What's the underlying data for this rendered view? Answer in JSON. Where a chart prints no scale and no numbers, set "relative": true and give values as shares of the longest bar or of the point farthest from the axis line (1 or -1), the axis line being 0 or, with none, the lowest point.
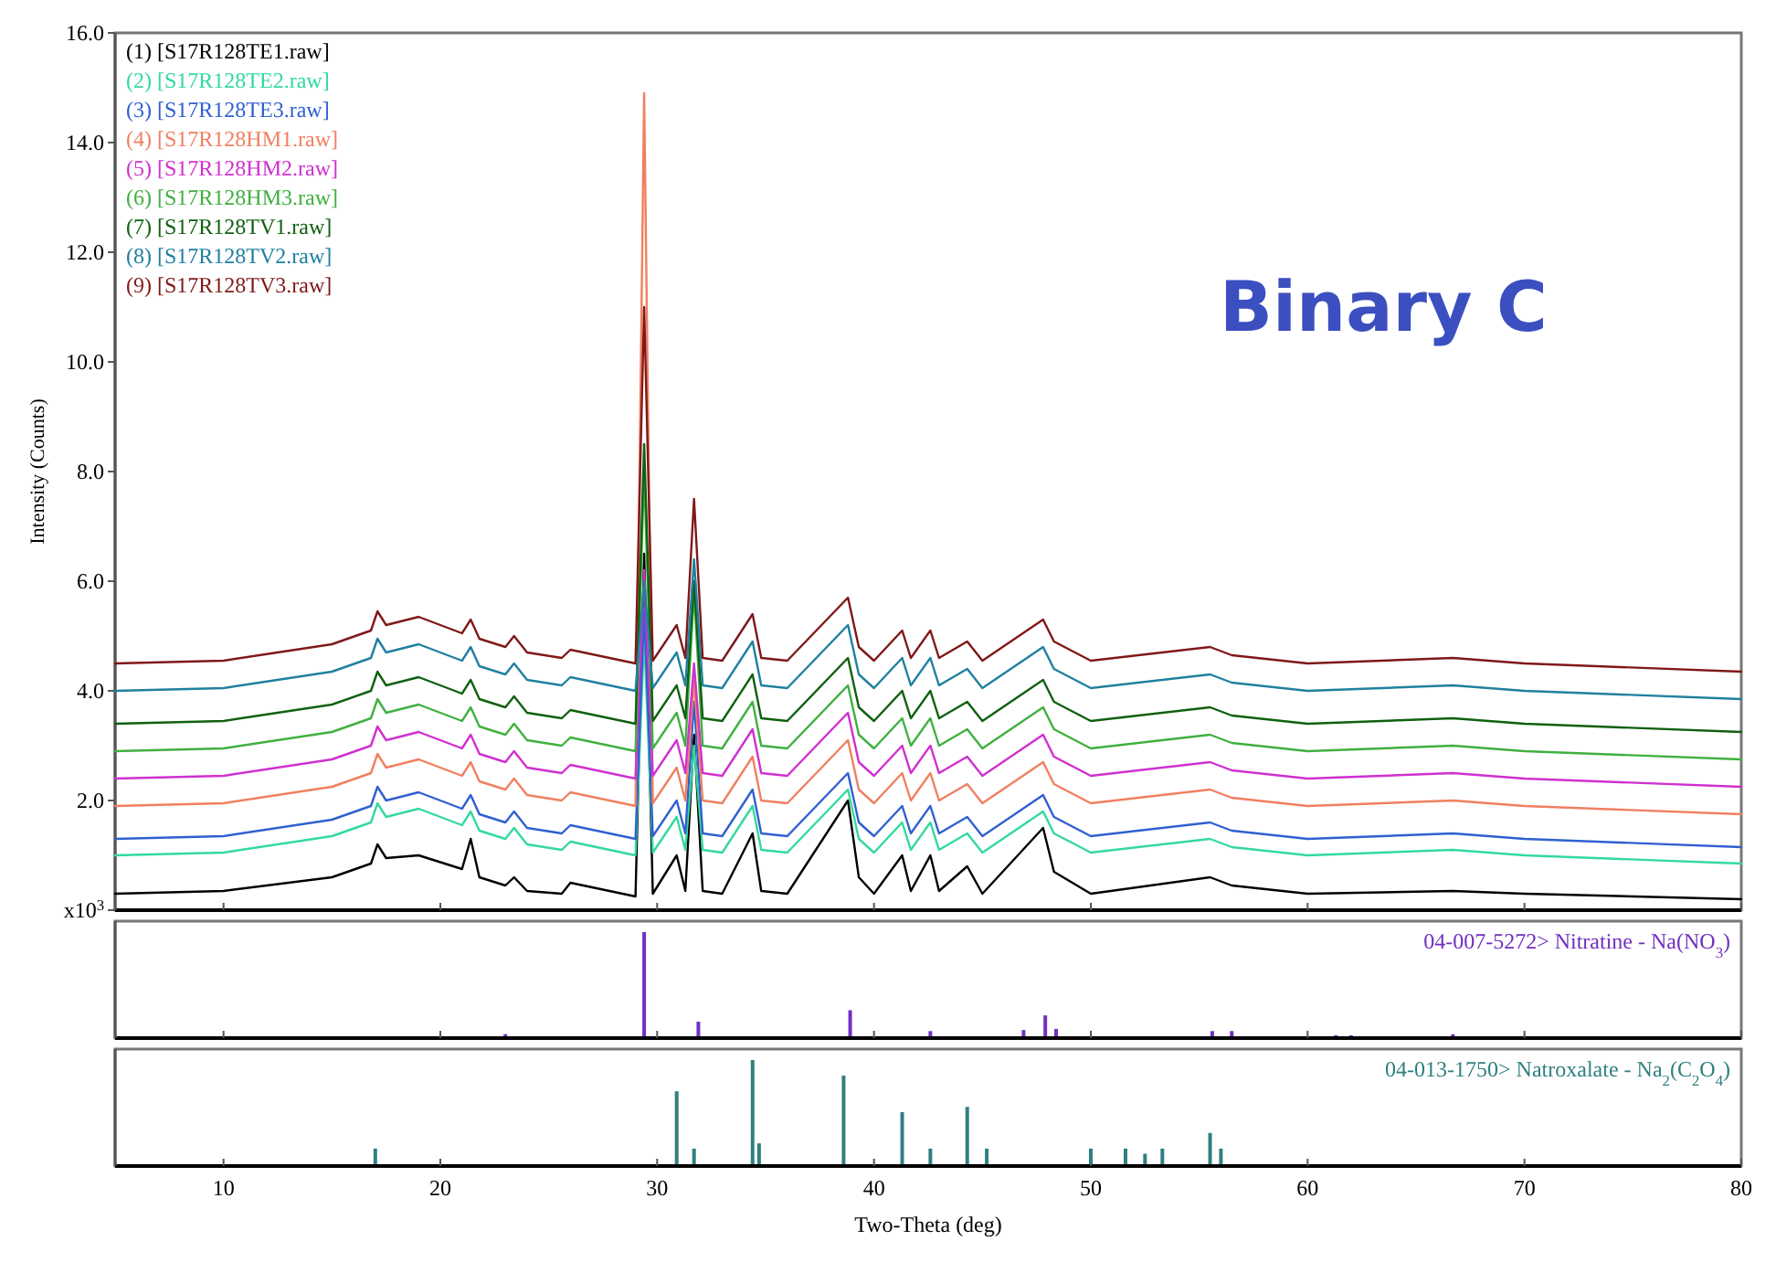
{
  "chart_data": [
    {
      "type": "line",
      "ylabel": "Intensity (Counts)",
      "xlim": [
        5,
        80
      ],
      "xticks": [
        10,
        20,
        30,
        40,
        50,
        60,
        70,
        80
      ],
      "ylim": [
        0,
        16
      ],
      "yticks": [
        {
          "value": 0,
          "label": "x10$^{3}$"
        },
        {
          "value": 2,
          "label": "2.0"
        },
        {
          "value": 4,
          "label": "4.0"
        },
        {
          "value": 6,
          "label": "6.0"
        },
        {
          "value": 8,
          "label": "8.0"
        },
        {
          "value": 10,
          "label": "10.0"
        },
        {
          "value": 12,
          "label": "12.0"
        },
        {
          "value": 14,
          "label": "14.0"
        },
        {
          "value": 16,
          "label": "16.0"
        }
      ],
      "tick_labels": "y",
      "legend": "top left",
      "annotations": [
        "Binary C"
      ],
      "x": [
        5,
        10,
        15,
        16.8,
        17.1,
        17.5,
        19,
        21,
        21.4,
        21.8,
        23,
        23.4,
        24,
        25.6,
        26,
        29,
        29.4,
        29.8,
        30.9,
        31.3,
        31.7,
        32.1,
        33,
        34.4,
        34.8,
        36,
        38.8,
        39.3,
        40,
        41.3,
        41.7,
        42.6,
        43,
        44.3,
        45,
        47.8,
        48.3,
        50,
        55.5,
        56.5,
        60,
        66.7,
        70,
        80
      ],
      "series": [
        {
          "name": "(1) [S17R128TE1.raw]",
          "color": "#000000",
          "values": [
            0.3,
            0.35,
            0.6,
            0.85,
            1.2,
            0.95,
            1.0,
            0.75,
            1.3,
            0.6,
            0.45,
            0.6,
            0.35,
            0.3,
            0.5,
            0.25,
            6.5,
            0.3,
            1.0,
            0.35,
            3.2,
            0.35,
            0.3,
            1.4,
            0.35,
            0.3,
            2.0,
            0.6,
            0.3,
            1.0,
            0.35,
            1.0,
            0.35,
            0.8,
            0.3,
            1.5,
            0.7,
            0.3,
            0.6,
            0.45,
            0.3,
            0.35,
            0.3,
            0.2
          ]
        },
        {
          "name": "(2) [S17R128TE2.raw]",
          "color": "#33d9a0",
          "values": [
            1.0,
            1.05,
            1.35,
            1.6,
            1.95,
            1.7,
            1.85,
            1.55,
            1.8,
            1.45,
            1.3,
            1.5,
            1.2,
            1.1,
            1.25,
            1.0,
            5.0,
            1.05,
            1.7,
            1.1,
            3.0,
            1.1,
            1.05,
            1.9,
            1.1,
            1.05,
            2.2,
            1.3,
            1.05,
            1.6,
            1.1,
            1.6,
            1.1,
            1.4,
            1.05,
            1.8,
            1.4,
            1.05,
            1.3,
            1.15,
            1.0,
            1.1,
            1.0,
            0.85
          ]
        },
        {
          "name": "(3) [S17R128TE3.raw]",
          "color": "#3060d0",
          "values": [
            1.3,
            1.35,
            1.65,
            1.9,
            2.25,
            2.0,
            2.15,
            1.85,
            2.1,
            1.75,
            1.6,
            1.8,
            1.5,
            1.4,
            1.55,
            1.3,
            5.5,
            1.35,
            2.0,
            1.4,
            3.8,
            1.4,
            1.35,
            2.2,
            1.4,
            1.35,
            2.5,
            1.6,
            1.35,
            1.9,
            1.4,
            1.9,
            1.4,
            1.7,
            1.35,
            2.1,
            1.7,
            1.35,
            1.6,
            1.45,
            1.3,
            1.4,
            1.3,
            1.15
          ]
        },
        {
          "name": "(4) [S17R128HM1.raw]",
          "color": "#f08060",
          "values": [
            1.9,
            1.95,
            2.25,
            2.5,
            2.85,
            2.6,
            2.75,
            2.45,
            2.7,
            2.35,
            2.2,
            2.4,
            2.1,
            2.0,
            2.15,
            1.9,
            14.9,
            1.95,
            2.6,
            2.0,
            4.2,
            2.0,
            1.95,
            2.8,
            2.0,
            1.95,
            3.1,
            2.2,
            1.95,
            2.5,
            2.0,
            2.5,
            2.0,
            2.3,
            1.95,
            2.7,
            2.3,
            1.95,
            2.2,
            2.05,
            1.9,
            2.0,
            1.9,
            1.75
          ]
        },
        {
          "name": "(5) [S17R128HM2.raw]",
          "color": "#d030d0",
          "values": [
            2.4,
            2.45,
            2.75,
            3.0,
            3.35,
            3.1,
            3.25,
            2.95,
            3.2,
            2.85,
            2.7,
            2.9,
            2.6,
            2.5,
            2.65,
            2.4,
            6.2,
            2.45,
            3.1,
            2.5,
            4.5,
            2.5,
            2.45,
            3.3,
            2.5,
            2.45,
            3.6,
            2.7,
            2.45,
            3.0,
            2.5,
            3.0,
            2.5,
            2.8,
            2.45,
            3.2,
            2.8,
            2.45,
            2.7,
            2.55,
            2.4,
            2.5,
            2.4,
            2.25
          ]
        },
        {
          "name": "(6) [S17R128HM3.raw]",
          "color": "#40b040",
          "values": [
            2.9,
            2.95,
            3.25,
            3.5,
            3.85,
            3.6,
            3.75,
            3.45,
            3.7,
            3.35,
            3.2,
            3.4,
            3.1,
            3.0,
            3.15,
            2.9,
            8.0,
            2.95,
            3.6,
            3.0,
            5.8,
            3.0,
            2.95,
            3.8,
            3.0,
            2.95,
            4.1,
            3.2,
            2.95,
            3.5,
            3.0,
            3.5,
            3.0,
            3.3,
            2.95,
            3.7,
            3.3,
            2.95,
            3.2,
            3.05,
            2.9,
            3.0,
            2.9,
            2.75
          ]
        },
        {
          "name": "(7) [S17R128TV1.raw]",
          "color": "#106010",
          "values": [
            3.4,
            3.45,
            3.75,
            4.0,
            4.35,
            4.1,
            4.25,
            3.95,
            4.2,
            3.85,
            3.7,
            3.9,
            3.6,
            3.5,
            3.65,
            3.4,
            8.5,
            3.45,
            4.1,
            3.5,
            6.0,
            3.5,
            3.45,
            4.3,
            3.5,
            3.45,
            4.6,
            3.7,
            3.45,
            4.0,
            3.5,
            4.0,
            3.5,
            3.8,
            3.45,
            4.2,
            3.8,
            3.45,
            3.7,
            3.55,
            3.4,
            3.5,
            3.4,
            3.25
          ]
        },
        {
          "name": "(8) [S17R128TV2.raw]",
          "color": "#2080a0",
          "values": [
            4.0,
            4.05,
            4.35,
            4.6,
            4.95,
            4.7,
            4.85,
            4.55,
            4.8,
            4.45,
            4.3,
            4.5,
            4.2,
            4.1,
            4.25,
            4.0,
            6.0,
            4.05,
            4.7,
            4.1,
            6.4,
            4.1,
            4.05,
            4.9,
            4.1,
            4.05,
            5.2,
            4.3,
            4.05,
            4.6,
            4.1,
            4.6,
            4.1,
            4.4,
            4.05,
            4.8,
            4.4,
            4.05,
            4.3,
            4.15,
            4.0,
            4.1,
            4.0,
            3.85
          ]
        },
        {
          "name": "(9) [S17R128TV3.raw]",
          "color": "#801818",
          "values": [
            4.5,
            4.55,
            4.85,
            5.1,
            5.45,
            5.2,
            5.35,
            5.05,
            5.3,
            4.95,
            4.8,
            5.0,
            4.7,
            4.6,
            4.75,
            4.5,
            11.0,
            4.55,
            5.2,
            4.6,
            7.5,
            4.6,
            4.55,
            5.4,
            4.6,
            4.55,
            5.7,
            4.8,
            4.55,
            5.1,
            4.6,
            5.1,
            4.6,
            4.9,
            4.55,
            5.3,
            4.9,
            4.55,
            4.8,
            4.65,
            4.5,
            4.6,
            4.5,
            4.35
          ]
        }
      ]
    },
    {
      "type": "bar",
      "relative": true,
      "xlim": [
        5,
        80
      ],
      "xticks": [
        10,
        20,
        30,
        40,
        50,
        60,
        70,
        80
      ],
      "tick_labels": false,
      "annotations": [
        "04-007-5272> Nitratine - Na(NO$_{3}$)"
      ],
      "x": [
        23.0,
        29.4,
        31.9,
        38.9,
        42.6,
        46.9,
        47.9,
        48.4,
        55.6,
        56.5,
        61.3,
        62.0,
        66.7
      ],
      "series": [
        {
          "color": "#7030c0",
          "values": [
            0.02,
            1,
            0.14,
            0.25,
            0.05,
            0.06,
            0.2,
            0.07,
            0.05,
            0.05,
            0.01,
            0.01,
            0.02
          ]
        }
      ]
    },
    {
      "type": "bar",
      "relative": true,
      "xlim": [
        5,
        80
      ],
      "xticks": [
        10,
        20,
        30,
        40,
        50,
        60,
        70,
        80
      ],
      "tick_labels": "x",
      "xlabel": "Two-Theta (deg)",
      "annotations": [
        "04-013-1750> Natroxalate - Na$_{2}$(C$_{2}$O$_{4}$)"
      ],
      "x": [
        17.0,
        30.9,
        31.7,
        34.4,
        34.7,
        38.6,
        41.3,
        42.6,
        44.3,
        45.2,
        50.0,
        51.6,
        52.5,
        53.3,
        55.5,
        56.0
      ],
      "series": [
        {
          "color": "#308080",
          "values": [
            0.15,
            0.7,
            0.15,
            1,
            0.2,
            0.85,
            0.5,
            0.15,
            0.55,
            0.15,
            0.15,
            0.15,
            0.1,
            0.15,
            0.3,
            0.15
          ]
        }
      ]
    }
  ]
}
